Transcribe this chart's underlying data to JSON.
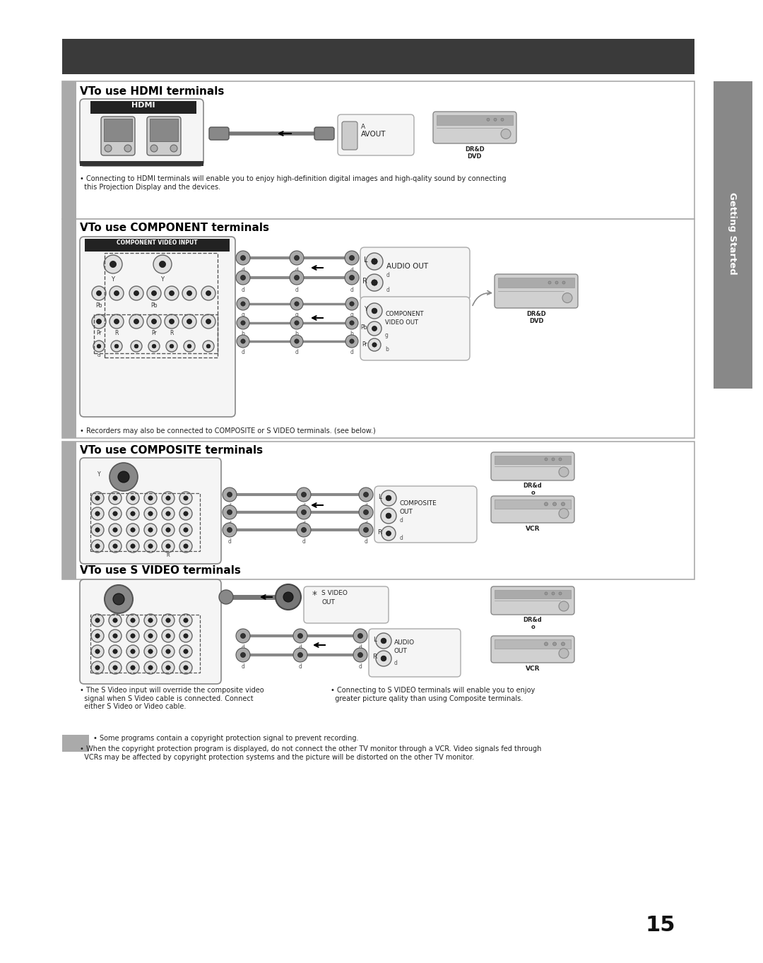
{
  "page_bg": "#ffffff",
  "header_bar_color": "#3a3a3a",
  "sidebar_color": "#888888",
  "sidebar_text": "Getting Started",
  "page_number": "15",
  "section1_title": "VTo use HDMI terminals",
  "section2_title": "VTo use COMPONENT terminals",
  "section3_title": "VTo use COMPOSITE terminals",
  "section4_title": "VTo use S VIDEO terminals",
  "hdmi_note": "• Connecting to HDMI terminals will enable you to enjoy high-definition digital images and high-qality sound by connecting\n  this Projection Display and the devices.",
  "component_note": "• Recorders may also be connected to COMPOSITE or S VIDEO terminals. (see below.)",
  "svideo_note1": "• The S Video input will override the composite video\n  signal when S Video cable is connected. Connect\n  either S Video or Video cable.",
  "svideo_note2": "• Connecting to S VIDEO terminals will enable you to enjoy\n  greater picture qality than using Composite terminals.",
  "bottom_note1": "• Some programs contain a copyright protection signal to prevent recording.",
  "bottom_note2": "• When the copyright protection program is displayed, do not connect the other TV monitor through a VCR. Video signals fed through\n  VCRs may be affected by copyright protection systems and the picture will be distorted on the other TV monitor."
}
